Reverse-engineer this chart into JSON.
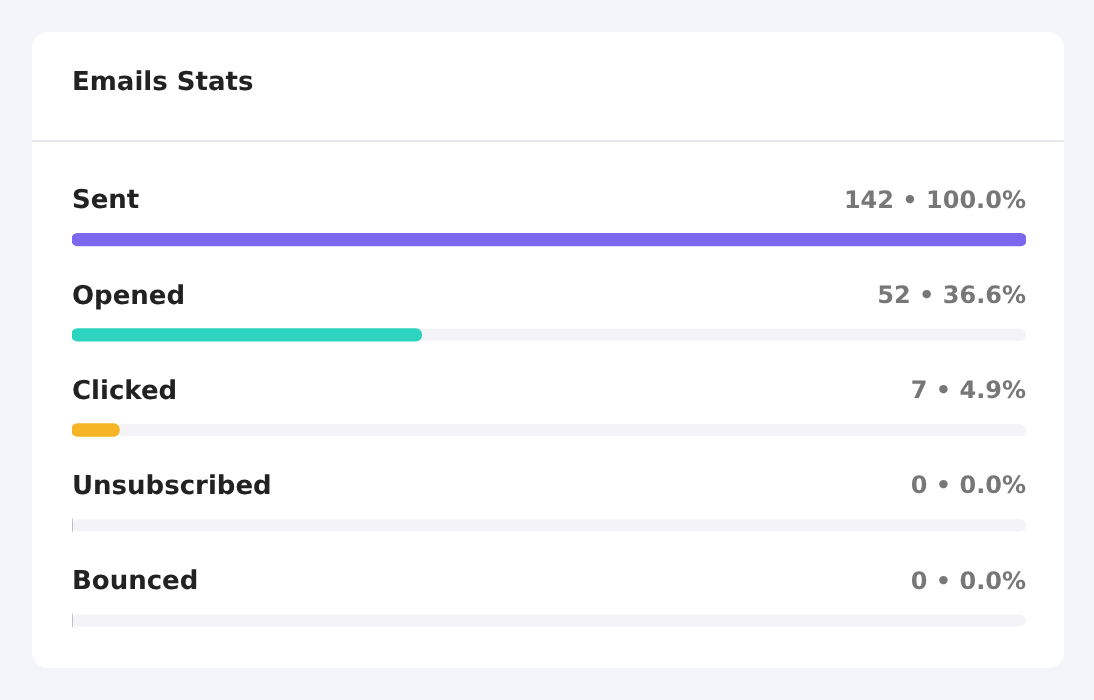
{
  "chart_data": {
    "type": "bar",
    "orientation": "horizontal",
    "title": "Emails Stats",
    "categories": [
      "Sent",
      "Opened",
      "Clicked",
      "Unsubscribed",
      "Bounced"
    ],
    "values": [
      142,
      52,
      7,
      0,
      0
    ],
    "colors": [
      "#7b68ee",
      "#2dd4bf",
      "#f5b526",
      null,
      null
    ],
    "value_labels": [
      "142 • 100.0%",
      "52 • 36.6%",
      "7 • 4.9%",
      "0 • 0.0%",
      "0 • 0.0%"
    ],
    "xlim": [
      0,
      142
    ],
    "legend": false
  }
}
